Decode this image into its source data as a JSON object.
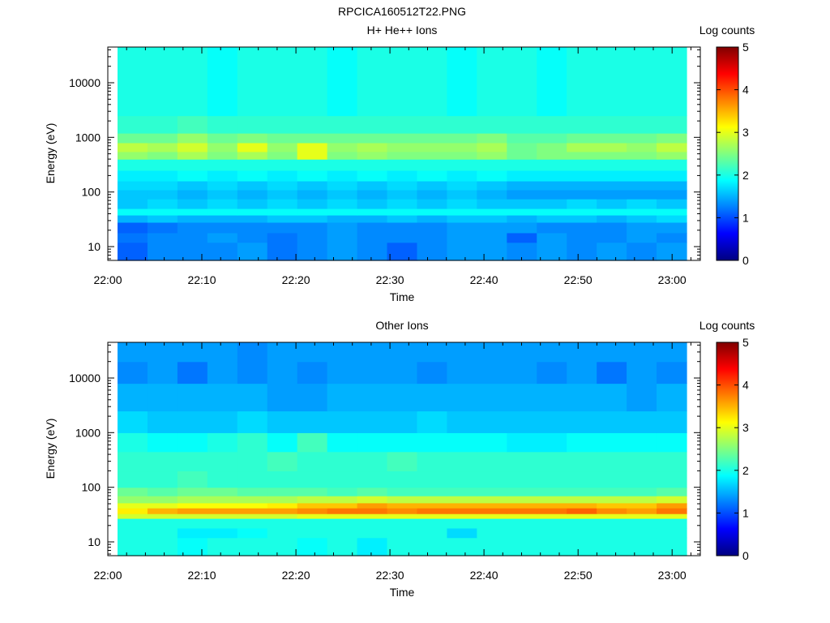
{
  "figure": {
    "title": "RPCICA160512T22.PNG"
  },
  "colormap": [
    "#000080",
    "#0000ff",
    "#0080ff",
    "#00ffff",
    "#80ff80",
    "#ffff00",
    "#ff8000",
    "#ff0000",
    "#800000"
  ],
  "chart_data": [
    {
      "type": "heatmap",
      "title": "H+ He++ Ions",
      "xlabel": "Time",
      "ylabel": "Energy (eV)",
      "xlim": [
        "22:00",
        "23:03"
      ],
      "ylim": [
        5.6,
        45000
      ],
      "yscale": "log",
      "xticks": [
        "22:00",
        "22:10",
        "22:20",
        "22:30",
        "22:40",
        "22:50",
        "23:00"
      ],
      "yticks": [
        10,
        100,
        1000,
        10000
      ],
      "ytick_labels": [
        "10",
        "100",
        "1000",
        "10000"
      ],
      "time_bins": 19,
      "energy_bands": [
        {
          "e_low": 5.6,
          "e_high": 12,
          "values": [
            1.1,
            1.3,
            1.3,
            1.3,
            1.4,
            1.2,
            1.3,
            1.4,
            1.3,
            1.1,
            1.3,
            1.4,
            1.4,
            1.3,
            1.4,
            1.3,
            1.4,
            1.3,
            1.4
          ]
        },
        {
          "e_low": 12,
          "e_high": 18,
          "values": [
            1.2,
            1.3,
            1.3,
            1.4,
            1.3,
            1.2,
            1.3,
            1.4,
            1.3,
            1.3,
            1.3,
            1.4,
            1.4,
            1.1,
            1.4,
            1.3,
            1.3,
            1.4,
            1.3
          ]
        },
        {
          "e_low": 18,
          "e_high": 28,
          "values": [
            1.1,
            1.2,
            1.3,
            1.3,
            1.3,
            1.3,
            1.3,
            1.4,
            1.3,
            1.3,
            1.3,
            1.4,
            1.4,
            1.4,
            1.3,
            1.3,
            1.3,
            1.4,
            1.4
          ]
        },
        {
          "e_low": 28,
          "e_high": 38,
          "values": [
            1.5,
            1.6,
            1.5,
            1.5,
            1.5,
            1.6,
            1.6,
            1.5,
            1.5,
            1.6,
            1.5,
            1.6,
            1.6,
            1.5,
            1.6,
            1.6,
            1.5,
            1.6,
            1.7
          ]
        },
        {
          "e_low": 38,
          "e_high": 50,
          "values": [
            1.9,
            1.9,
            1.9,
            1.9,
            1.9,
            1.9,
            1.9,
            1.9,
            1.9,
            1.9,
            1.9,
            1.9,
            1.9,
            1.9,
            1.9,
            1.9,
            1.9,
            1.9,
            1.9
          ]
        },
        {
          "e_low": 50,
          "e_high": 75,
          "values": [
            1.6,
            1.7,
            1.6,
            1.7,
            1.6,
            1.7,
            1.6,
            1.7,
            1.6,
            1.7,
            1.6,
            1.7,
            1.6,
            1.6,
            1.6,
            1.7,
            1.6,
            1.7,
            1.6
          ]
        },
        {
          "e_low": 75,
          "e_high": 110,
          "values": [
            1.6,
            1.6,
            1.5,
            1.6,
            1.5,
            1.6,
            1.5,
            1.6,
            1.5,
            1.6,
            1.5,
            1.6,
            1.5,
            1.4,
            1.4,
            1.4,
            1.4,
            1.4,
            1.4
          ]
        },
        {
          "e_low": 110,
          "e_high": 160,
          "values": [
            1.7,
            1.7,
            1.6,
            1.7,
            1.6,
            1.7,
            1.6,
            1.7,
            1.6,
            1.7,
            1.6,
            1.7,
            1.6,
            1.5,
            1.5,
            1.5,
            1.5,
            1.5,
            1.5
          ]
        },
        {
          "e_low": 160,
          "e_high": 250,
          "values": [
            1.8,
            1.8,
            1.9,
            1.8,
            1.9,
            1.8,
            1.9,
            1.8,
            1.9,
            1.8,
            1.9,
            1.8,
            1.9,
            1.8,
            1.8,
            1.8,
            1.8,
            1.8,
            1.8
          ]
        },
        {
          "e_low": 250,
          "e_high": 400,
          "values": [
            2.0,
            2.0,
            2.0,
            2.0,
            2.0,
            2.0,
            2.0,
            2.0,
            2.0,
            2.0,
            2.0,
            2.0,
            2.0,
            2.0,
            2.0,
            2.0,
            2.0,
            2.0,
            2.0
          ]
        },
        {
          "e_low": 400,
          "e_high": 550,
          "values": [
            2.6,
            2.5,
            2.7,
            2.5,
            2.7,
            2.5,
            3.0,
            2.5,
            2.6,
            2.5,
            2.5,
            2.5,
            2.6,
            2.4,
            2.5,
            2.5,
            2.5,
            2.5,
            2.6
          ]
        },
        {
          "e_low": 550,
          "e_high": 800,
          "values": [
            2.8,
            2.7,
            2.9,
            2.6,
            3.0,
            2.6,
            3.0,
            2.6,
            2.7,
            2.6,
            2.6,
            2.6,
            2.7,
            2.4,
            2.5,
            2.7,
            2.7,
            2.6,
            2.8
          ]
        },
        {
          "e_low": 800,
          "e_high": 1200,
          "values": [
            2.4,
            2.4,
            2.6,
            2.4,
            2.5,
            2.4,
            2.4,
            2.4,
            2.4,
            2.4,
            2.4,
            2.4,
            2.5,
            2.3,
            2.3,
            2.4,
            2.4,
            2.4,
            2.5
          ]
        },
        {
          "e_low": 1200,
          "e_high": 2500,
          "values": [
            2.1,
            2.1,
            2.2,
            2.1,
            2.1,
            2.1,
            2.1,
            2.1,
            2.1,
            2.1,
            2.1,
            2.1,
            2.1,
            2.1,
            2.1,
            2.1,
            2.1,
            2.1,
            2.1
          ]
        },
        {
          "e_low": 2500,
          "e_high": 45000,
          "values": [
            2.0,
            2.0,
            2.0,
            1.9,
            2.0,
            2.0,
            2.0,
            1.9,
            2.0,
            2.0,
            2.0,
            1.9,
            2.0,
            2.0,
            1.9,
            2.0,
            2.0,
            2.0,
            2.0
          ]
        }
      ],
      "colorbar": {
        "label": "Log counts",
        "min": 0,
        "max": 5,
        "ticks": [
          "0",
          "1",
          "2",
          "3",
          "4",
          "5"
        ]
      }
    },
    {
      "type": "heatmap",
      "title": "Other Ions",
      "xlabel": "Time",
      "ylabel": "Energy (eV)",
      "xlim": [
        "22:00",
        "23:03"
      ],
      "ylim": [
        5.6,
        45000
      ],
      "yscale": "log",
      "xticks": [
        "22:00",
        "22:10",
        "22:20",
        "22:30",
        "22:40",
        "22:50",
        "23:00"
      ],
      "yticks": [
        10,
        100,
        1000,
        10000
      ],
      "ytick_labels": [
        "10",
        "100",
        "1000",
        "10000"
      ],
      "time_bins": 19,
      "energy_bands": [
        {
          "e_low": 5.6,
          "e_high": 12,
          "values": [
            2.0,
            2.0,
            1.9,
            2.0,
            2.0,
            2.0,
            1.9,
            2.0,
            1.8,
            2.0,
            2.0,
            2.0,
            2.0,
            2.0,
            2.0,
            2.0,
            2.0,
            2.0,
            2.0
          ]
        },
        {
          "e_low": 12,
          "e_high": 18,
          "values": [
            2.0,
            2.0,
            1.8,
            1.8,
            1.9,
            2.0,
            2.0,
            2.0,
            2.0,
            2.0,
            2.0,
            1.7,
            2.0,
            2.0,
            2.0,
            2.0,
            2.0,
            2.0,
            2.0
          ]
        },
        {
          "e_low": 18,
          "e_high": 27,
          "values": [
            2.0,
            2.0,
            2.0,
            2.0,
            2.0,
            2.0,
            2.0,
            2.0,
            2.0,
            2.0,
            2.0,
            2.0,
            2.0,
            2.0,
            2.0,
            2.0,
            2.0,
            2.0,
            2.0
          ]
        },
        {
          "e_low": 27,
          "e_high": 33,
          "values": [
            2.9,
            2.9,
            2.9,
            2.9,
            2.9,
            2.9,
            3.0,
            3.0,
            3.0,
            3.0,
            3.0,
            3.0,
            3.0,
            3.0,
            3.0,
            3.0,
            3.0,
            3.0,
            3.0
          ]
        },
        {
          "e_low": 33,
          "e_high": 42,
          "values": [
            3.2,
            3.5,
            3.6,
            3.6,
            3.6,
            3.6,
            3.7,
            3.8,
            3.8,
            3.7,
            3.8,
            3.8,
            3.8,
            3.8,
            3.8,
            3.9,
            3.7,
            3.6,
            3.8
          ]
        },
        {
          "e_low": 42,
          "e_high": 52,
          "values": [
            3.0,
            3.0,
            3.1,
            3.1,
            3.1,
            3.2,
            3.4,
            3.4,
            3.6,
            3.5,
            3.5,
            3.5,
            3.5,
            3.5,
            3.5,
            3.5,
            3.4,
            3.4,
            3.6
          ]
        },
        {
          "e_low": 52,
          "e_high": 70,
          "values": [
            2.6,
            2.6,
            2.7,
            2.7,
            2.7,
            2.7,
            2.8,
            2.8,
            2.9,
            2.8,
            2.8,
            2.8,
            2.8,
            2.8,
            2.8,
            2.8,
            2.8,
            2.8,
            2.9
          ]
        },
        {
          "e_low": 70,
          "e_high": 100,
          "values": [
            2.4,
            2.3,
            2.4,
            2.4,
            2.3,
            2.3,
            2.3,
            2.2,
            2.3,
            2.2,
            2.2,
            2.2,
            2.2,
            2.2,
            2.2,
            2.2,
            2.2,
            2.2,
            2.3
          ]
        },
        {
          "e_low": 100,
          "e_high": 200,
          "values": [
            2.1,
            2.1,
            2.2,
            2.1,
            2.1,
            2.1,
            2.1,
            2.1,
            2.1,
            2.1,
            2.1,
            2.1,
            2.1,
            2.1,
            2.1,
            2.1,
            2.1,
            2.1,
            2.1
          ]
        },
        {
          "e_low": 200,
          "e_high": 450,
          "values": [
            2.1,
            2.1,
            2.1,
            2.1,
            2.1,
            2.2,
            2.1,
            2.1,
            2.1,
            2.2,
            2.1,
            2.1,
            2.1,
            2.1,
            2.1,
            2.1,
            2.1,
            2.1,
            2.1
          ]
        },
        {
          "e_low": 450,
          "e_high": 1000,
          "values": [
            2.0,
            1.9,
            1.9,
            2.0,
            2.1,
            1.9,
            2.2,
            1.9,
            1.9,
            1.9,
            1.9,
            1.9,
            1.9,
            1.8,
            1.8,
            1.9,
            1.9,
            1.9,
            1.9
          ]
        },
        {
          "e_low": 1000,
          "e_high": 2500,
          "values": [
            1.7,
            1.6,
            1.6,
            1.6,
            1.7,
            1.6,
            1.6,
            1.6,
            1.6,
            1.6,
            1.7,
            1.6,
            1.6,
            1.6,
            1.6,
            1.6,
            1.6,
            1.6,
            1.6
          ]
        },
        {
          "e_low": 2500,
          "e_high": 8000,
          "values": [
            1.5,
            1.5,
            1.5,
            1.5,
            1.5,
            1.4,
            1.4,
            1.5,
            1.5,
            1.5,
            1.5,
            1.5,
            1.5,
            1.5,
            1.5,
            1.5,
            1.5,
            1.4,
            1.5
          ]
        },
        {
          "e_low": 8000,
          "e_high": 20000,
          "values": [
            1.3,
            1.4,
            1.2,
            1.4,
            1.3,
            1.4,
            1.3,
            1.4,
            1.4,
            1.4,
            1.3,
            1.4,
            1.4,
            1.4,
            1.3,
            1.4,
            1.2,
            1.4,
            1.3
          ]
        },
        {
          "e_low": 20000,
          "e_high": 45000,
          "values": [
            1.4,
            1.4,
            1.4,
            1.4,
            1.3,
            1.4,
            1.4,
            1.4,
            1.4,
            1.4,
            1.4,
            1.4,
            1.4,
            1.4,
            1.4,
            1.4,
            1.4,
            1.4,
            1.4
          ]
        }
      ],
      "colorbar": {
        "label": "Log counts",
        "min": 0,
        "max": 5,
        "ticks": [
          "0",
          "1",
          "2",
          "3",
          "4",
          "5"
        ]
      }
    }
  ]
}
